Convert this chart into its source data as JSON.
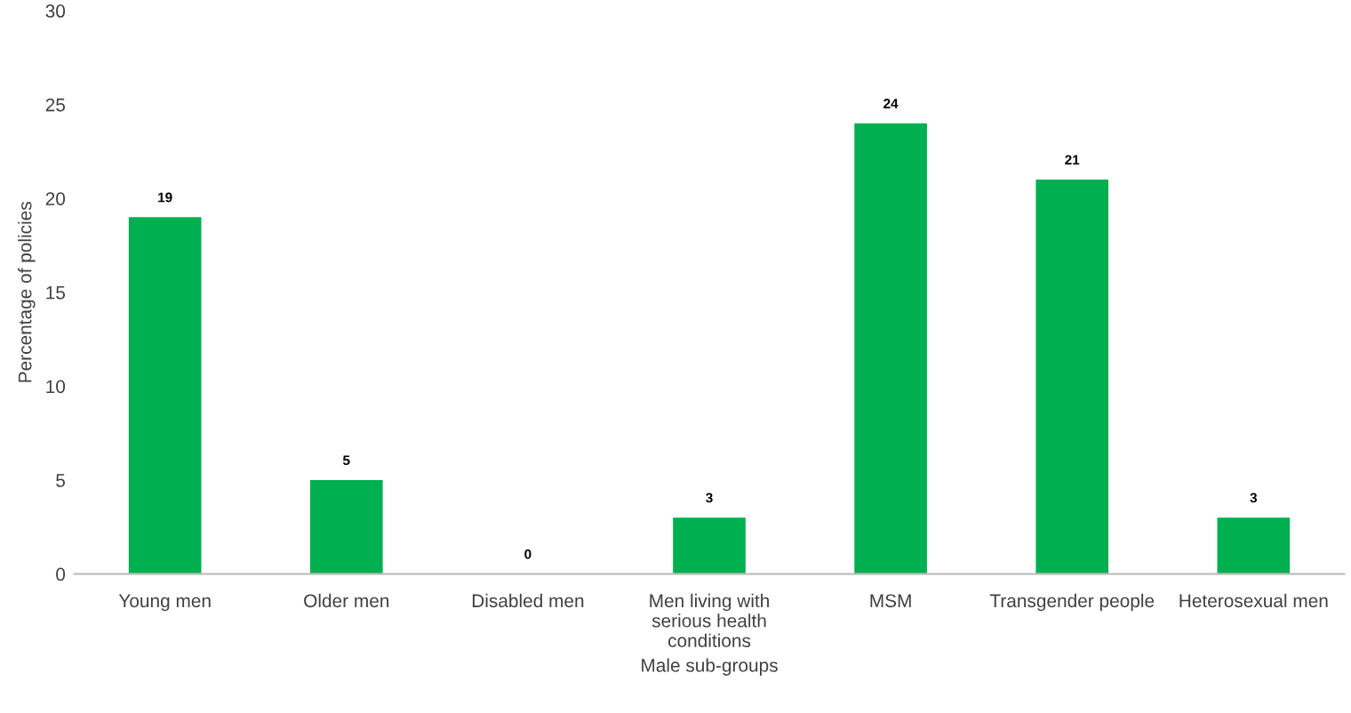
{
  "chart_data": {
    "type": "bar",
    "xlabel": "Male sub-groups",
    "ylabel": "Percentage of policies",
    "categories": [
      "Young men",
      "Older men",
      "Disabled men",
      "Men living with serious health conditions",
      "MSM",
      "Transgender people",
      "Heterosexual men"
    ],
    "values": [
      19,
      5,
      0,
      3,
      24,
      21,
      3
    ],
    "color": "#00b050",
    "ylim": [
      0,
      30
    ],
    "yticks": [
      0,
      5,
      10,
      15,
      20,
      25,
      30
    ],
    "grid": false,
    "data_labels": true
  }
}
